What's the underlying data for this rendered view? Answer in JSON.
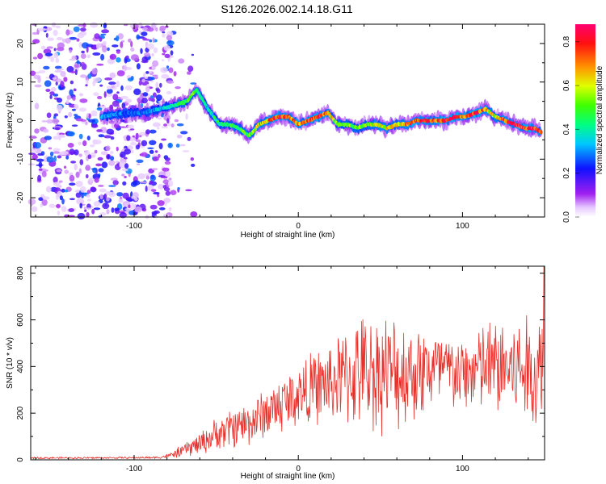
{
  "title": "S126.2026.002.14.18.G11",
  "colors": {
    "snr_line": "#e8302a",
    "background": "#ffffff",
    "axis": "#000000"
  },
  "chart_data": [
    {
      "type": "heatmap",
      "name": "spectrogram",
      "xlabel": "Height of straight line (km)",
      "ylabel": "Frequency (Hz)",
      "xlim": [
        -163,
        150
      ],
      "ylim": [
        -25,
        25
      ],
      "xticks": [
        -100,
        0,
        100
      ],
      "yticks": [
        -20,
        -10,
        0,
        10,
        20
      ],
      "colorbar": {
        "label": "Normalized spectral amplitude",
        "range": [
          0.0,
          0.88
        ],
        "ticks": [
          0.0,
          0.2,
          0.4,
          0.6,
          0.8
        ]
      },
      "ridge": {
        "x": [
          -120,
          -105,
          -95,
          -85,
          -75,
          -68,
          -62,
          -55,
          -48,
          -42,
          -36,
          -30,
          -24,
          -18,
          -12,
          -6,
          0,
          6,
          12,
          18,
          24,
          30,
          36,
          42,
          48,
          54,
          60,
          66,
          72,
          78,
          84,
          90,
          96,
          102,
          108,
          114,
          120,
          126,
          132,
          138,
          144,
          148
        ],
        "y": [
          1,
          2,
          2,
          3,
          4,
          5,
          8,
          3,
          -1,
          -1,
          -2,
          -4,
          -1,
          0,
          1,
          1,
          -1,
          0,
          1,
          2,
          -1,
          -1,
          -2,
          -1,
          -1,
          -2,
          -1,
          -1,
          0,
          0,
          0,
          0,
          1,
          1,
          2,
          3,
          1,
          0,
          -1,
          -2,
          -2,
          -3
        ],
        "amplitude": [
          0.35,
          0.3,
          0.3,
          0.35,
          0.45,
          0.5,
          0.55,
          0.4,
          0.45,
          0.5,
          0.5,
          0.55,
          0.7,
          0.75,
          0.85,
          0.8,
          0.75,
          0.8,
          0.85,
          0.7,
          0.55,
          0.6,
          0.55,
          0.6,
          0.6,
          0.65,
          0.65,
          0.75,
          0.88,
          0.88,
          0.8,
          0.88,
          0.85,
          0.75,
          0.88,
          0.7,
          0.65,
          0.8,
          0.88,
          0.85,
          0.88,
          0.7
        ]
      },
      "noise_region_x": [
        -163,
        -83
      ]
    },
    {
      "type": "line",
      "name": "snr",
      "xlabel": "Height of straight line (km)",
      "ylabel": "SNR (10 * v/v)",
      "xlim": [
        -163,
        150
      ],
      "ylim": [
        0,
        830
      ],
      "xticks": [
        -100,
        0,
        100
      ],
      "yticks": [
        0,
        200,
        400,
        600,
        800
      ],
      "envelope": {
        "x": [
          -163,
          -130,
          -100,
          -85,
          -78,
          -70,
          -60,
          -50,
          -40,
          -30,
          -20,
          -10,
          0,
          10,
          20,
          30,
          40,
          50,
          60,
          70,
          80,
          90,
          100,
          110,
          120,
          130,
          140,
          146,
          149
        ],
        "mean": [
          8,
          8,
          9,
          10,
          18,
          40,
          70,
          110,
          140,
          160,
          200,
          240,
          280,
          310,
          330,
          360,
          380,
          380,
          370,
          380,
          390,
          380,
          360,
          390,
          400,
          390,
          380,
          350,
          500
        ],
        "spread": [
          4,
          4,
          4,
          5,
          12,
          30,
          50,
          70,
          90,
          100,
          110,
          130,
          140,
          160,
          180,
          220,
          250,
          260,
          250,
          220,
          200,
          180,
          160,
          200,
          220,
          230,
          240,
          240,
          330
        ]
      }
    }
  ]
}
